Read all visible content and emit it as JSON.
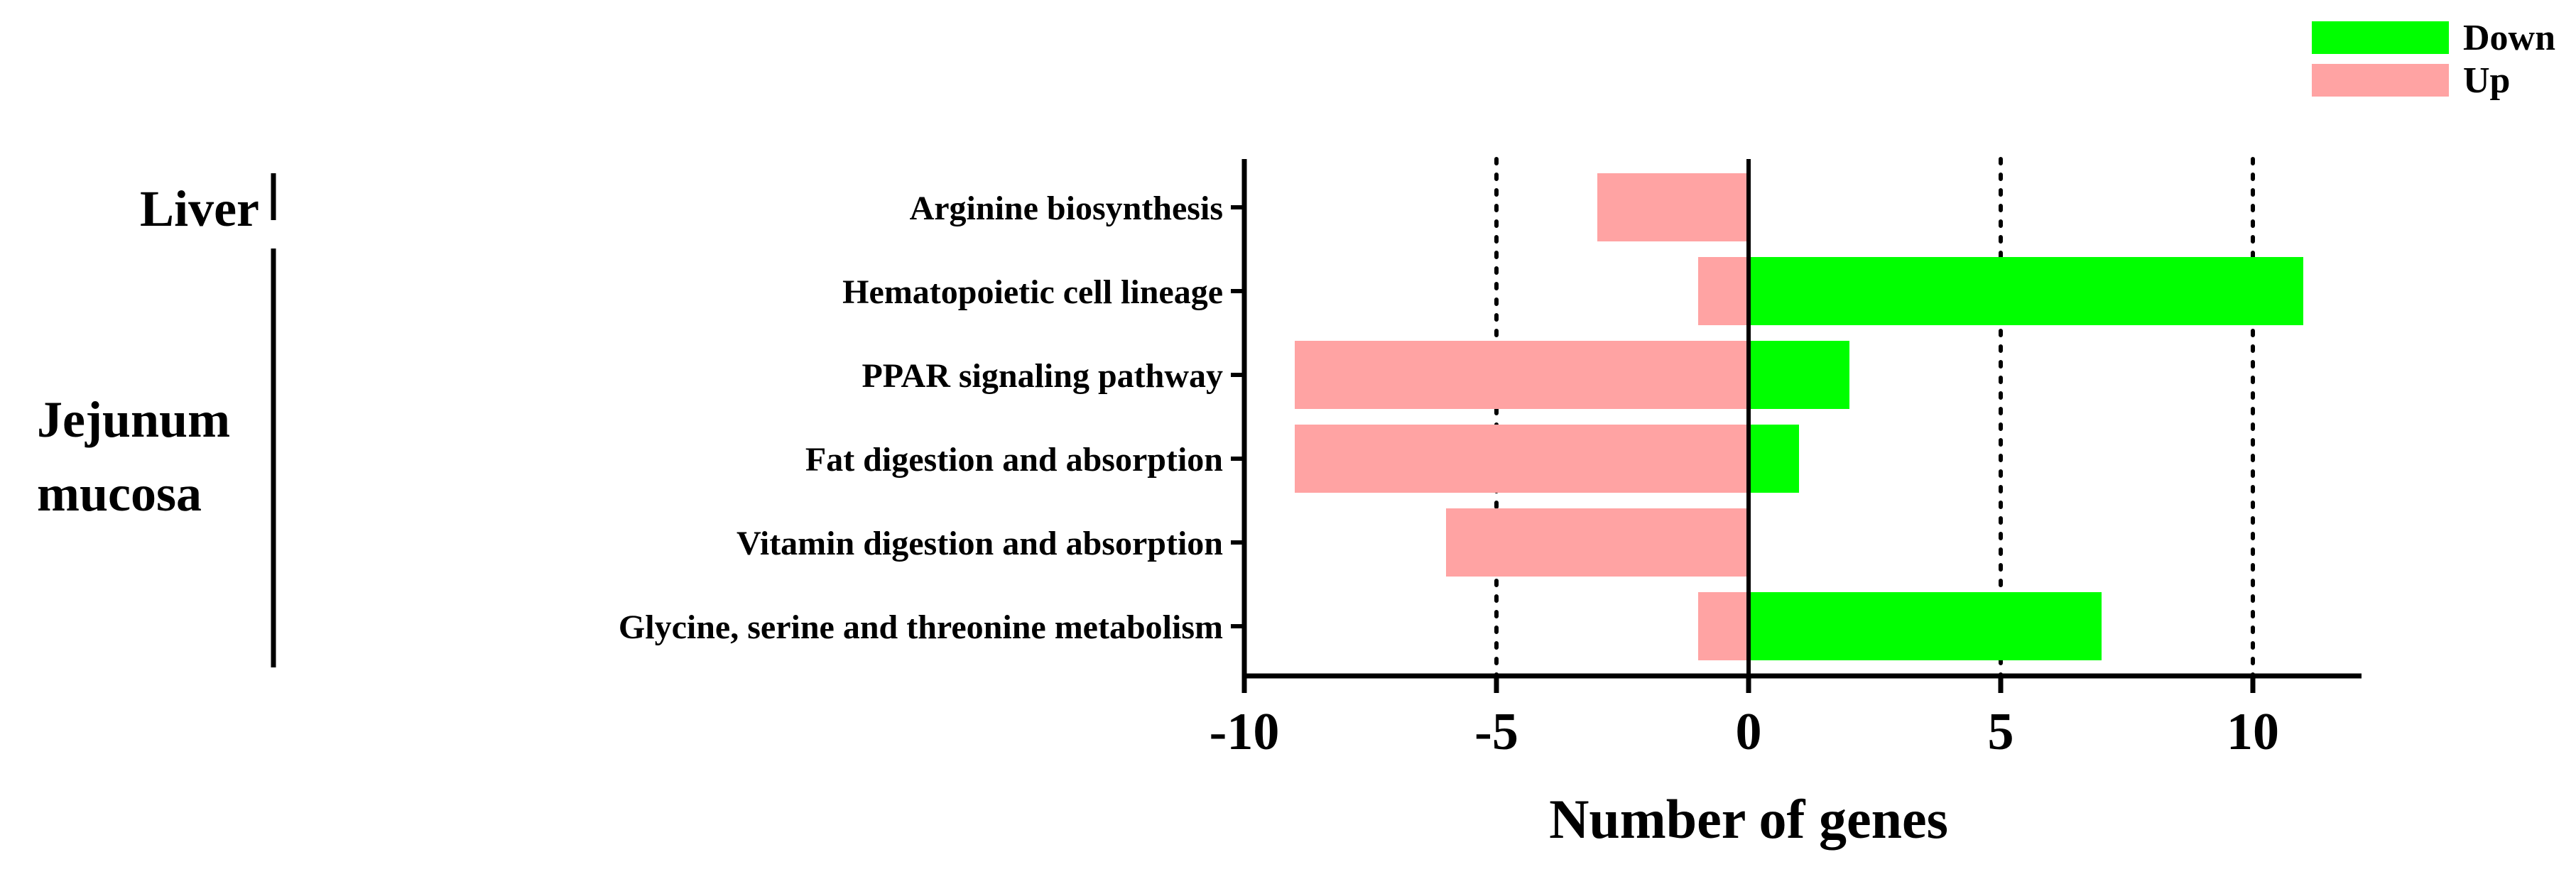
{
  "chart_data": {
    "type": "bar",
    "orientation": "horizontal",
    "title": "",
    "xlabel": "Number of genes",
    "ylabel": "",
    "xlim": [
      -10,
      12
    ],
    "xticks": [
      -10,
      -5,
      0,
      5,
      10
    ],
    "xtick_labels": [
      "-10",
      "-5",
      "0",
      "5",
      "10"
    ],
    "grid": "dotted vertical lines at -5, 5 and 10",
    "legend_position": "top-right",
    "categories": [
      "Arginine biosynthesis",
      "Hematopoietic cell lineage",
      "PPAR signaling pathway",
      "Fat digestion and absorption",
      "Vitamin digestion and absorption",
      "Glycine, serine and threonine metabolism"
    ],
    "series": [
      {
        "name": "Down",
        "color": "#00ff00",
        "values": [
          0,
          11,
          2,
          1,
          0,
          7
        ]
      },
      {
        "name": "Up",
        "color": "#ffa3a3",
        "values": [
          -3,
          -1,
          -9,
          -9,
          -6,
          -1
        ]
      }
    ],
    "groups": [
      {
        "lines": [
          "Liver"
        ],
        "from": 0,
        "to": 0
      },
      {
        "lines": [
          "Jejunum",
          "mucosa"
        ],
        "from": 1,
        "to": 5
      }
    ]
  }
}
